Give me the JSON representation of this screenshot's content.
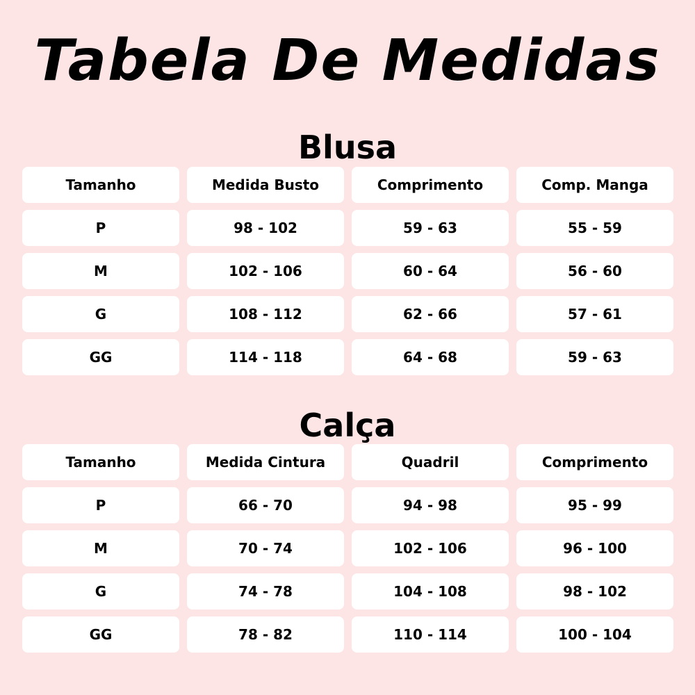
{
  "title": "Tabela De Medidas",
  "blusa": {
    "title": "Blusa",
    "headers": [
      "Tamanho",
      "Medida Busto",
      "Comprimento",
      "Comp. Manga"
    ],
    "rows": [
      [
        "P",
        "98 - 102",
        "59 - 63",
        "55 - 59"
      ],
      [
        "M",
        "102 - 106",
        "60 - 64",
        "56 - 60"
      ],
      [
        "G",
        "108 - 112",
        "62 - 66",
        "57 - 61"
      ],
      [
        "GG",
        "114 - 118",
        "64 - 68",
        "59 - 63"
      ]
    ]
  },
  "calca": {
    "title": "Calça",
    "headers": [
      "Tamanho",
      "Medida Cintura",
      "Quadril",
      "Comprimento"
    ],
    "rows": [
      [
        "P",
        "66 - 70",
        "94 - 98",
        "95 - 99"
      ],
      [
        "M",
        "70 - 74",
        "102 - 106",
        "96 - 100"
      ],
      [
        "G",
        "74 - 78",
        "104 - 108",
        "98 - 102"
      ],
      [
        "GG",
        "78 - 82",
        "110 - 114",
        "100 - 104"
      ]
    ]
  }
}
